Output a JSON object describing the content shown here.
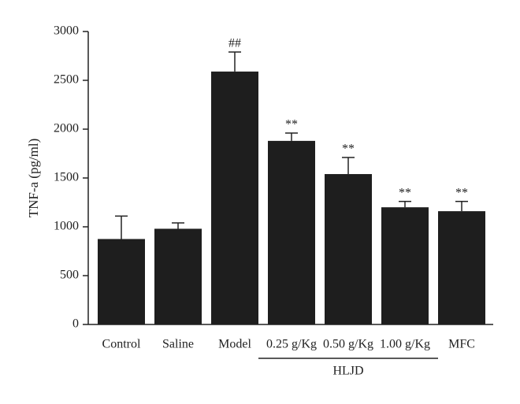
{
  "chart_data": {
    "type": "bar",
    "y_label": "TNF-a (pg/ml)",
    "categories": [
      "Control",
      "Saline",
      "Model",
      "0.25 g/Kg",
      "0.50 g/Kg",
      "1.00 g/Kg",
      "MFC"
    ],
    "values": [
      875,
      980,
      2590,
      1880,
      1540,
      1200,
      1160
    ],
    "errors": [
      235,
      60,
      200,
      80,
      170,
      60,
      100
    ],
    "annotations": [
      null,
      null,
      "##",
      "**",
      "**",
      "**",
      "**"
    ],
    "color": "#1e1e1e",
    "group": {
      "label": "HLJD",
      "categories": [
        "0.25 g/Kg",
        "0.50 g/Kg",
        "1.00 g/Kg"
      ]
    },
    "ylim": [
      0,
      3000
    ],
    "yticks": [
      0,
      500,
      1000,
      1500,
      2000,
      2500,
      3000
    ]
  }
}
